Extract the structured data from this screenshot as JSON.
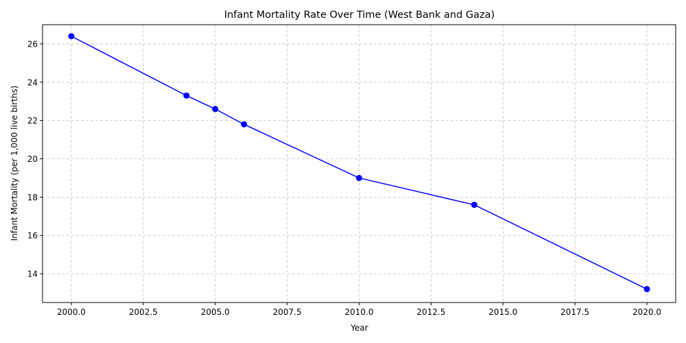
{
  "chart_data": {
    "type": "line",
    "title": "Infant Mortality Rate Over Time (West Bank and Gaza)",
    "xlabel": "Year",
    "ylabel": "Infant Mortality (per 1,000 live births)",
    "xlim": [
      1999,
      2021
    ],
    "ylim": [
      12.5,
      27.0
    ],
    "x_ticks": [
      2000.0,
      2002.5,
      2005.0,
      2007.5,
      2010.0,
      2012.5,
      2015.0,
      2017.5,
      2020.0
    ],
    "x_tick_labels": [
      "2000.0",
      "2002.5",
      "2005.0",
      "2007.5",
      "2010.0",
      "2012.5",
      "2015.0",
      "2017.5",
      "2020.0"
    ],
    "y_ticks": [
      14,
      16,
      18,
      20,
      22,
      24,
      26
    ],
    "y_tick_labels": [
      "14",
      "16",
      "18",
      "20",
      "22",
      "24",
      "26"
    ],
    "grid": true,
    "series": [
      {
        "color": "#0000ff",
        "marker": "circle",
        "x": [
          2000,
          2004,
          2005,
          2006,
          2010,
          2014,
          2020
        ],
        "y": [
          26.4,
          23.3,
          22.6,
          21.8,
          19.0,
          17.6,
          13.2
        ]
      }
    ]
  }
}
